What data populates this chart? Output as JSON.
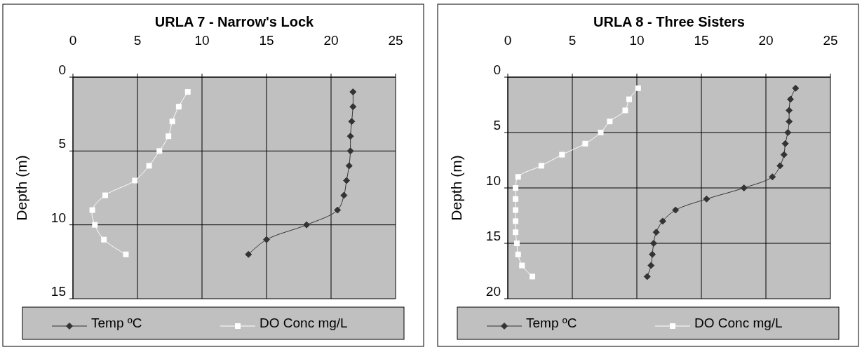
{
  "chart_data": [
    {
      "type": "line",
      "title": "URLA 7 -  Narrow's Lock",
      "ylabel": "Depth (m)",
      "xlim": [
        0,
        25
      ],
      "xticks": [
        0,
        5,
        10,
        15,
        20,
        25
      ],
      "ylim": [
        15,
        0
      ],
      "yticks": [
        0,
        5,
        10,
        15
      ],
      "grid": true,
      "legend": "bottom",
      "series": [
        {
          "name": "Temp ºC",
          "color": "#333333",
          "marker": "diamond",
          "x": [
            21.7,
            21.7,
            21.6,
            21.5,
            21.5,
            21.4,
            21.2,
            21.0,
            20.5,
            18.1,
            15.0,
            13.6
          ],
          "values": [
            1,
            2,
            3,
            4,
            5,
            6,
            7,
            8,
            9,
            10,
            11,
            12
          ]
        },
        {
          "name": "DO Conc mg/L",
          "color": "#ffffff",
          "marker": "square",
          "x": [
            8.9,
            8.2,
            7.7,
            7.4,
            6.7,
            5.9,
            4.8,
            2.5,
            1.5,
            1.7,
            2.4,
            4.1
          ],
          "values": [
            1,
            2,
            3,
            4,
            5,
            6,
            7,
            8,
            9,
            10,
            11,
            12
          ]
        }
      ]
    },
    {
      "type": "line",
      "title": "URLA 8 - Three Sisters",
      "ylabel": "Depth (m)",
      "xlim": [
        0,
        25
      ],
      "xticks": [
        0,
        5,
        10,
        15,
        20,
        25
      ],
      "ylim": [
        20,
        0
      ],
      "yticks": [
        0,
        5,
        10,
        15,
        20
      ],
      "grid": true,
      "legend": "bottom",
      "series": [
        {
          "name": "Temp ºC",
          "color": "#333333",
          "marker": "diamond",
          "x": [
            22.3,
            21.9,
            21.8,
            21.8,
            21.7,
            21.5,
            21.4,
            21.1,
            20.5,
            18.3,
            15.4,
            13.0,
            12.0,
            11.5,
            11.3,
            11.2,
            11.1,
            10.8
          ],
          "values": [
            1,
            2,
            3,
            4,
            5,
            6,
            7,
            8,
            9,
            10,
            11,
            12,
            13,
            14,
            15,
            16,
            17,
            18
          ]
        },
        {
          "name": "DO Conc mg/L",
          "color": "#ffffff",
          "marker": "square",
          "x": [
            10.1,
            9.4,
            9.1,
            7.9,
            7.2,
            6.0,
            4.2,
            2.6,
            0.8,
            0.6,
            0.6,
            0.6,
            0.6,
            0.6,
            0.7,
            0.8,
            1.1,
            1.9
          ],
          "values": [
            1,
            2,
            3,
            4,
            5,
            6,
            7,
            8,
            9,
            10,
            11,
            12,
            13,
            14,
            15,
            16,
            17,
            18
          ]
        }
      ]
    }
  ]
}
